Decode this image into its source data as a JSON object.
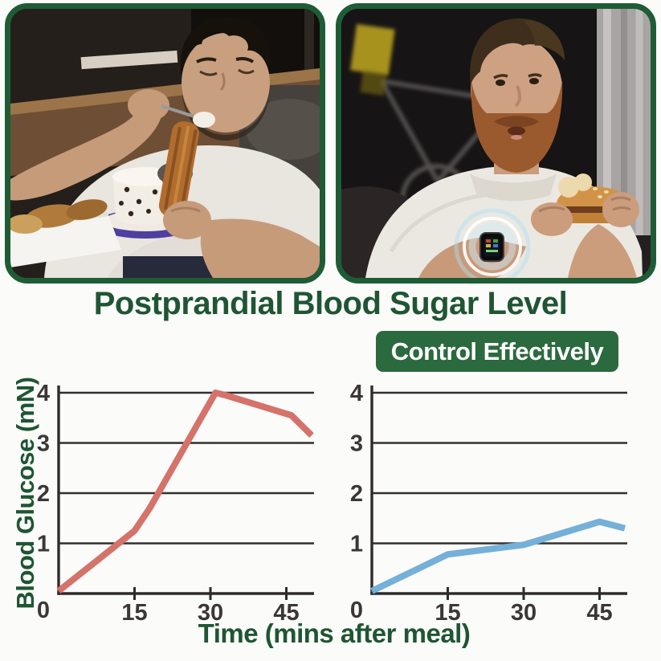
{
  "title": "Postprandial Blood Sugar Level",
  "badge": "Control Effectively",
  "photos": {
    "left_name": "man-overeating-desserts-photo",
    "right_name": "man-eating-burger-with-smartwatch-photo"
  },
  "axis_labels": {
    "ylabel": "Blood Glucose (mN)",
    "xlabel": "Time (mins after meal)"
  },
  "colors": {
    "title_green": "#1f5533",
    "badge_green": "#2b6a3e",
    "frame_green": "#1e5c36",
    "line_red": "#d5726a",
    "line_blue": "#74b0d8",
    "axis_dark": "#2e2b28",
    "grid_dark": "#33302d",
    "tick_text": "#3a3734",
    "background": "#fbfbfa"
  },
  "chart_data": [
    {
      "type": "line",
      "name": "blood-sugar-without-control",
      "series": [
        {
          "name": "uncontrolled blood glucose",
          "color": "#d5726a",
          "x": [
            0,
            15,
            18,
            31,
            33,
            46,
            50
          ],
          "y": [
            0.05,
            1.25,
            1.7,
            4.0,
            3.95,
            3.55,
            3.15
          ]
        }
      ],
      "xlabel": "Time (mins after meal)",
      "ylabel": "Blood Glucose (mN)",
      "xlim": [
        0,
        50
      ],
      "ylim": [
        0,
        4
      ],
      "xticks": [
        15,
        30,
        45
      ],
      "yticks": [
        0,
        1,
        2,
        3,
        4
      ],
      "grid": "horizontal-only",
      "legend": "none"
    },
    {
      "type": "line",
      "name": "blood-sugar-with-control",
      "series": [
        {
          "name": "controlled blood glucose",
          "color": "#74b0d8",
          "x": [
            0,
            15,
            30,
            45,
            50
          ],
          "y": [
            0.05,
            0.78,
            0.97,
            1.43,
            1.3
          ]
        }
      ],
      "xlabel": "Time (mins after meal)",
      "ylabel": "Blood Glucose (mN)",
      "xlim": [
        0,
        50
      ],
      "ylim": [
        0,
        4
      ],
      "xticks": [
        15,
        30,
        45
      ],
      "yticks": [
        0,
        1,
        2,
        3,
        4
      ],
      "grid": "horizontal-only",
      "legend": "none"
    }
  ]
}
